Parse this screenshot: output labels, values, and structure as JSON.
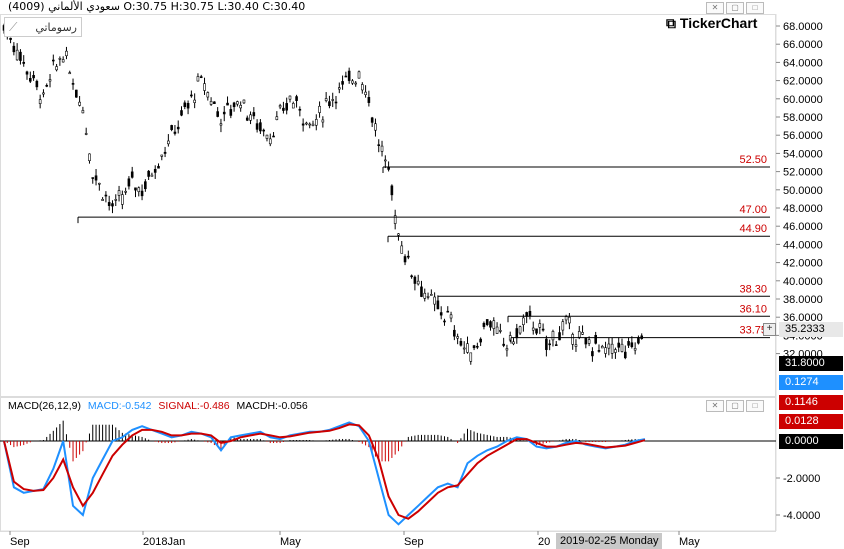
{
  "header": {
    "symbol_info": "سعودي الألماني (4009) O:30.75 H:30.75 L:30.40 C:30.40",
    "brand": "TickerChart",
    "draw_tool_label": "رسوماتي"
  },
  "macd_panel": {
    "title": "MACD(26,12,9)",
    "macd_text": "MACD:-0.542",
    "signal_text": "SIGNAL:-0.486",
    "hist_text": "MACDH:-0.056"
  },
  "cursor": {
    "date_label": "2019-02-25 Monday",
    "price_label": "35.2333"
  },
  "tags": {
    "last_price": "31.8000",
    "macd_value": "0.1274",
    "signal_value": "0.1146",
    "hist_value": "0.0128",
    "zero_value": "0.0000"
  },
  "colors": {
    "macd": "#1e90ff",
    "signal": "#cc0000",
    "level_label": "#cc0000",
    "price_tag_bg": "#000000",
    "macd_tag_bg": "#1e90ff",
    "signal_tag_bg": "#cc0000"
  },
  "chart_data": [
    {
      "type": "candlestick",
      "x_ticks": [
        "Sep",
        "2018Jan",
        "May",
        "Sep",
        "20",
        "May"
      ],
      "y_ticks": [
        "68.0000",
        "66.0000",
        "64.0000",
        "62.0000",
        "60.0000",
        "58.0000",
        "56.0000",
        "54.0000",
        "52.0000",
        "50.0000",
        "48.0000",
        "46.0000",
        "44.0000",
        "42.0000",
        "40.0000",
        "38.0000",
        "36.0000",
        "34.0000",
        "32.0000"
      ],
      "ylim": [
        30,
        69
      ],
      "levels": [
        {
          "value": 52.5,
          "label": "52.50"
        },
        {
          "value": 47.0,
          "label": "47.00"
        },
        {
          "value": 44.9,
          "label": "44.90"
        },
        {
          "value": 38.3,
          "label": "38.30"
        },
        {
          "value": 36.1,
          "label": "36.10"
        },
        {
          "value": 33.75,
          "label": "33.75"
        }
      ],
      "close_series": [
        68,
        66,
        64,
        62,
        60,
        63,
        65,
        62,
        59,
        52,
        50,
        48,
        49,
        51,
        50,
        52,
        54,
        56,
        58,
        60,
        62,
        60,
        58,
        59,
        60,
        58,
        57,
        56,
        58,
        60,
        59,
        57,
        58,
        60,
        61,
        62,
        63,
        60,
        55,
        52,
        45,
        42,
        40,
        38,
        37,
        36,
        34,
        32,
        33,
        36,
        34,
        33,
        34,
        36,
        35,
        33,
        34,
        35,
        34,
        33,
        33,
        32,
        33,
        32,
        33,
        34
      ]
    },
    {
      "type": "macd",
      "y_ticks": [
        "-2.0000",
        "-4.0000"
      ],
      "ylim": [
        -5,
        1.8
      ],
      "macd": [
        0,
        -2.5,
        -2.8,
        -2.7,
        -2.6,
        -1.5,
        0,
        -3.5,
        -4,
        -2,
        -1,
        0,
        0.2,
        0.6,
        0.8,
        0.6,
        0.4,
        0.2,
        0.3,
        0.5,
        0.4,
        0.2,
        -0.5,
        0.2,
        0.3,
        0.4,
        0.5,
        0.2,
        0.1,
        0.3,
        0.4,
        0.5,
        0.5,
        0.6,
        0.8,
        1,
        0.8,
        0,
        -2,
        -4,
        -4.5,
        -4,
        -3.5,
        -3,
        -2.5,
        -2.3,
        -2.5,
        -1.2,
        -0.8,
        -0.5,
        -0.3,
        0,
        0.2,
        0.1,
        -0.3,
        -0.4,
        -0.3,
        -0.1,
        0,
        -0.2,
        -0.3,
        -0.4,
        -0.3,
        -0.2,
        0,
        0.1
      ],
      "signal": [
        0,
        -2.2,
        -2.6,
        -2.7,
        -2.65,
        -2,
        -1,
        -2.5,
        -3.5,
        -2.8,
        -1.8,
        -0.8,
        -0.2,
        0.3,
        0.6,
        0.6,
        0.5,
        0.3,
        0.3,
        0.4,
        0.4,
        0.3,
        -0.1,
        0,
        0.2,
        0.3,
        0.4,
        0.3,
        0.2,
        0.25,
        0.35,
        0.45,
        0.5,
        0.55,
        0.7,
        0.9,
        0.85,
        0.3,
        -1,
        -3,
        -4,
        -4.2,
        -3.8,
        -3.3,
        -2.8,
        -2.5,
        -2.4,
        -1.8,
        -1.2,
        -0.8,
        -0.5,
        -0.2,
        0.1,
        0.1,
        -0.1,
        -0.3,
        -0.3,
        -0.2,
        -0.1,
        -0.15,
        -0.25,
        -0.35,
        -0.3,
        -0.25,
        -0.1,
        0.05
      ]
    }
  ]
}
